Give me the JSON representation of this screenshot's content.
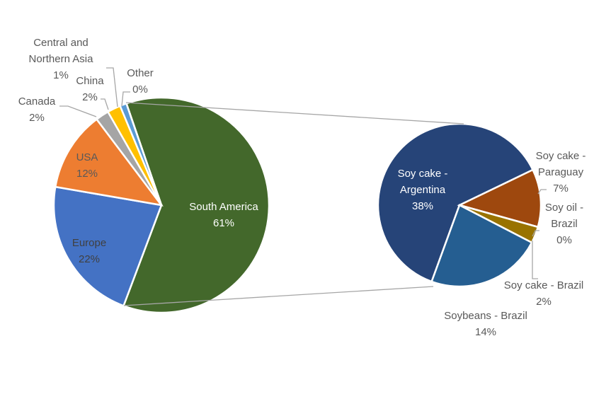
{
  "chart_data": [
    {
      "type": "pie",
      "categories": [
        "South America",
        "Europe",
        "USA",
        "Canada",
        "China",
        "Central and Northern Asia",
        "Other"
      ],
      "values": [
        61,
        22,
        12,
        2,
        2,
        1,
        0
      ],
      "value_labels": [
        "61%",
        "22%",
        "12%",
        "2%",
        "2%",
        "1%",
        "0%"
      ],
      "colors": [
        "#43682b",
        "#4472c4",
        "#ed7d31",
        "#a5a5a5",
        "#ffc000",
        "#5b9bd5",
        "#4472c4"
      ]
    },
    {
      "type": "pie",
      "categories": [
        "Soy cake - Argentina",
        "Soy cake - Paraguay",
        "Soy oil - Brazil",
        "Soy cake - Brazil",
        "Soybeans - Brazil"
      ],
      "values": [
        38,
        7,
        0,
        2,
        14
      ],
      "value_labels": [
        "38%",
        "7%",
        "0%",
        "2%",
        "14%"
      ],
      "colors": [
        "#264478",
        "#9e480e",
        "#636363",
        "#997300",
        "#255e91"
      ]
    }
  ]
}
